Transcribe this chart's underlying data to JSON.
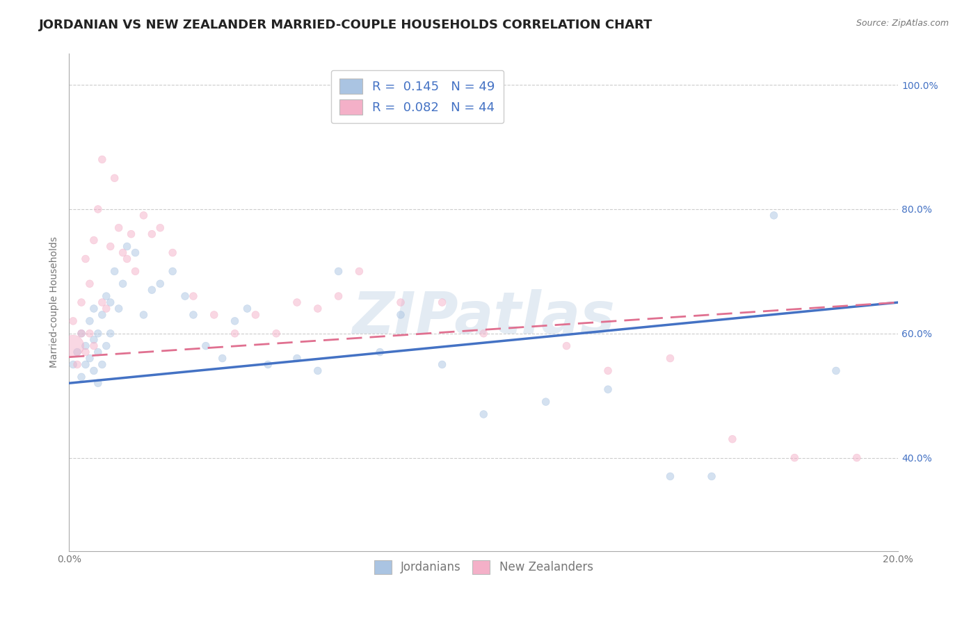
{
  "title": "JORDANIAN VS NEW ZEALANDER MARRIED-COUPLE HOUSEHOLDS CORRELATION CHART",
  "source": "Source: ZipAtlas.com",
  "ylabel": "Married-couple Households",
  "xlim": [
    0.0,
    0.2
  ],
  "ylim": [
    0.25,
    1.05
  ],
  "x_tick_positions": [
    0.0,
    0.05,
    0.1,
    0.15,
    0.2
  ],
  "x_tick_labels": [
    "0.0%",
    "",
    "",
    "",
    "20.0%"
  ],
  "y_tick_positions": [
    0.4,
    0.6,
    0.8,
    1.0
  ],
  "y_tick_labels": [
    "40.0%",
    "60.0%",
    "80.0%",
    "100.0%"
  ],
  "legend_entries": [
    {
      "label": "R =  0.145   N = 49",
      "color": "#aac4e2"
    },
    {
      "label": "R =  0.082   N = 44",
      "color": "#f4b8cc"
    }
  ],
  "legend_bottom": [
    {
      "label": "Jordanians",
      "color": "#aac4e2"
    },
    {
      "label": "New Zealanders",
      "color": "#f4b8cc"
    }
  ],
  "blue_scatter_x": [
    0.001,
    0.002,
    0.003,
    0.003,
    0.004,
    0.004,
    0.005,
    0.005,
    0.006,
    0.006,
    0.006,
    0.007,
    0.007,
    0.007,
    0.008,
    0.008,
    0.009,
    0.009,
    0.01,
    0.01,
    0.011,
    0.012,
    0.013,
    0.014,
    0.016,
    0.018,
    0.02,
    0.022,
    0.025,
    0.028,
    0.03,
    0.033,
    0.037,
    0.04,
    0.043,
    0.048,
    0.055,
    0.06,
    0.065,
    0.075,
    0.08,
    0.09,
    0.1,
    0.115,
    0.13,
    0.145,
    0.155,
    0.17,
    0.185
  ],
  "blue_scatter_y": [
    0.55,
    0.57,
    0.6,
    0.53,
    0.58,
    0.55,
    0.56,
    0.62,
    0.54,
    0.59,
    0.64,
    0.57,
    0.52,
    0.6,
    0.55,
    0.63,
    0.58,
    0.66,
    0.6,
    0.65,
    0.7,
    0.64,
    0.68,
    0.74,
    0.73,
    0.63,
    0.67,
    0.68,
    0.7,
    0.66,
    0.63,
    0.58,
    0.56,
    0.62,
    0.64,
    0.55,
    0.56,
    0.54,
    0.7,
    0.57,
    0.63,
    0.55,
    0.47,
    0.49,
    0.51,
    0.37,
    0.37,
    0.79,
    0.54
  ],
  "blue_scatter_size": [
    60,
    60,
    60,
    60,
    60,
    60,
    60,
    60,
    60,
    60,
    60,
    60,
    60,
    60,
    60,
    60,
    60,
    60,
    60,
    60,
    60,
    60,
    60,
    60,
    60,
    60,
    60,
    60,
    60,
    60,
    60,
    60,
    60,
    60,
    60,
    60,
    60,
    60,
    60,
    60,
    60,
    60,
    60,
    60,
    60,
    60,
    60,
    60,
    60
  ],
  "pink_scatter_x": [
    0.001,
    0.001,
    0.002,
    0.003,
    0.003,
    0.004,
    0.004,
    0.005,
    0.005,
    0.006,
    0.006,
    0.007,
    0.008,
    0.008,
    0.009,
    0.01,
    0.011,
    0.012,
    0.013,
    0.014,
    0.015,
    0.016,
    0.018,
    0.02,
    0.022,
    0.025,
    0.03,
    0.035,
    0.04,
    0.045,
    0.05,
    0.055,
    0.06,
    0.065,
    0.07,
    0.08,
    0.09,
    0.1,
    0.12,
    0.13,
    0.145,
    0.16,
    0.175,
    0.19
  ],
  "pink_scatter_y": [
    0.58,
    0.62,
    0.55,
    0.6,
    0.65,
    0.57,
    0.72,
    0.6,
    0.68,
    0.58,
    0.75,
    0.8,
    0.65,
    0.88,
    0.64,
    0.74,
    0.85,
    0.77,
    0.73,
    0.72,
    0.76,
    0.7,
    0.79,
    0.76,
    0.77,
    0.73,
    0.66,
    0.63,
    0.6,
    0.63,
    0.6,
    0.65,
    0.64,
    0.66,
    0.7,
    0.65,
    0.65,
    0.6,
    0.58,
    0.54,
    0.56,
    0.43,
    0.4,
    0.4
  ],
  "pink_scatter_size": [
    500,
    60,
    60,
    60,
    60,
    60,
    60,
    60,
    60,
    60,
    60,
    60,
    60,
    60,
    60,
    60,
    60,
    60,
    60,
    60,
    60,
    60,
    60,
    60,
    60,
    60,
    60,
    60,
    60,
    60,
    60,
    60,
    60,
    60,
    60,
    60,
    60,
    60,
    60,
    60,
    60,
    60,
    60,
    60
  ],
  "blue_line_x": [
    0.0,
    0.2
  ],
  "blue_line_y": [
    0.52,
    0.65
  ],
  "pink_line_x": [
    0.0,
    0.2
  ],
  "pink_line_y": [
    0.562,
    0.65
  ],
  "blue_color": "#aac4e2",
  "pink_color": "#f4b0c8",
  "blue_line_color": "#4472c4",
  "pink_line_color": "#e07090",
  "watermark": "ZIPatlas",
  "background_color": "#ffffff",
  "grid_color": "#cccccc",
  "title_color": "#222222",
  "label_color": "#777777",
  "tick_color": "#4472c4",
  "legend_text_color": "#4472c4",
  "title_fontsize": 13,
  "axis_fontsize": 10,
  "tick_fontsize": 10
}
